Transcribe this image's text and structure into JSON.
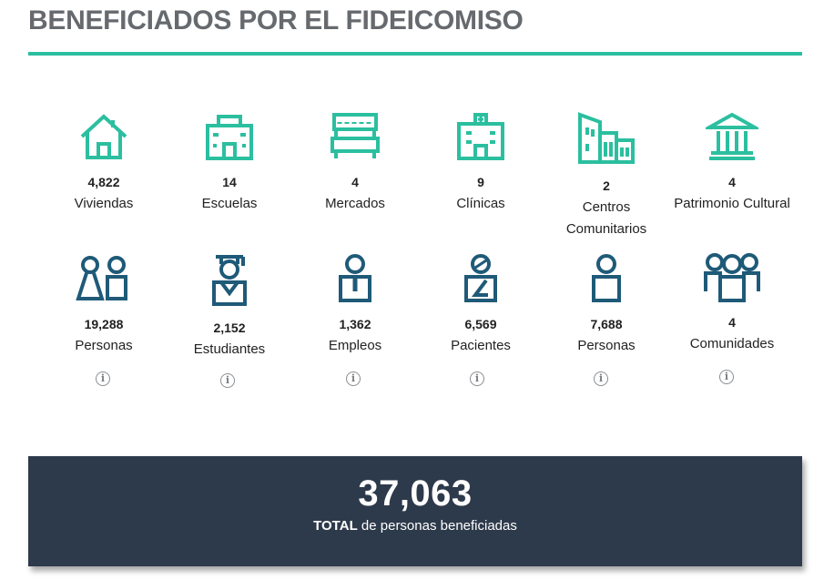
{
  "page": {
    "title": "BENEFICIADOS POR EL FIDEICOMISO"
  },
  "colors": {
    "accent": "#2bbf9f",
    "navy": "#1f5a78",
    "total_bg": "#2d3a4b",
    "title": "#666a6e"
  },
  "row1": [
    {
      "icon": "house-icon",
      "number": "4,822",
      "label": "Viviendas"
    },
    {
      "icon": "school-icon",
      "number": "14",
      "label": "Escuelas"
    },
    {
      "icon": "market-icon",
      "number": "4",
      "label": "Mercados"
    },
    {
      "icon": "clinic-icon",
      "number": "9",
      "label": "Clínicas"
    },
    {
      "icon": "community-building-icon",
      "number": "2",
      "label": "Centros Comunitarios"
    },
    {
      "icon": "heritage-building-icon",
      "number": "4",
      "label": "Patrimonio Cultural"
    }
  ],
  "row2": [
    {
      "icon": "people-pair-icon",
      "number": "19,288",
      "label": "Personas"
    },
    {
      "icon": "student-icon",
      "number": "2,152",
      "label": "Estudiantes"
    },
    {
      "icon": "employee-icon",
      "number": "1,362",
      "label": "Empleos"
    },
    {
      "icon": "patient-icon",
      "number": "6,569",
      "label": "Pacientes"
    },
    {
      "icon": "person-icon",
      "number": "7,688",
      "label": "Personas"
    },
    {
      "icon": "group-icon",
      "number": "4",
      "label": "Comunidades"
    }
  ],
  "info_glyph": "i",
  "total": {
    "number": "37,063",
    "bold_label": "TOTAL",
    "label_rest": " de personas beneficiadas"
  }
}
